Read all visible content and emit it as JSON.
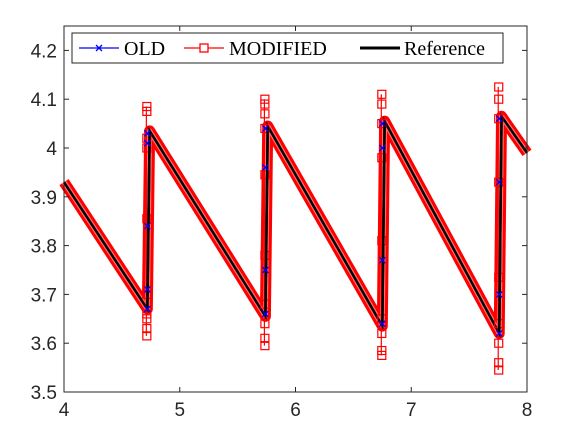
{
  "toolbar": {
    "buttons": [
      {
        "name": "brush-icon"
      },
      {
        "name": "data-tips-icon"
      },
      {
        "name": "export-icon"
      },
      {
        "name": "pan-hand-icon"
      },
      {
        "name": "zoom-in-icon"
      },
      {
        "name": "zoom-out-icon"
      },
      {
        "name": "home-icon"
      }
    ]
  },
  "chart_data": {
    "type": "line",
    "title": "",
    "xlabel": "",
    "ylabel": "",
    "xlim": [
      4,
      8
    ],
    "ylim": [
      3.5,
      4.25
    ],
    "xticks": [
      "4",
      "5",
      "6",
      "7",
      "8"
    ],
    "yticks": [
      "3.5",
      "3.6",
      "3.7",
      "3.8",
      "3.9",
      "4",
      "4.1",
      "4.2"
    ],
    "grid": false,
    "legend": {
      "placement": "top",
      "orientation": "horizontal"
    },
    "sawtooth": {
      "segments": [
        {
          "x_start": 4.0,
          "y_start": 3.93,
          "x_end": 4.72,
          "y_end": 3.67
        },
        {
          "x_start": 4.74,
          "y_start": 4.035,
          "x_end": 5.74,
          "y_end": 3.655
        },
        {
          "x_start": 5.76,
          "y_start": 4.045,
          "x_end": 6.75,
          "y_end": 3.635
        },
        {
          "x_start": 6.77,
          "y_start": 4.055,
          "x_end": 7.76,
          "y_end": 3.62
        },
        {
          "x_start": 7.78,
          "y_start": 4.065,
          "x_end": 8.0,
          "y_end": 3.99
        }
      ]
    },
    "series": [
      {
        "name": "OLD",
        "color": "#0000ff",
        "marker": "x",
        "jumps": [
          {
            "x": 4.72,
            "y": [
              3.67,
              3.71,
              3.84,
              4.01,
              4.03
            ]
          },
          {
            "x": 5.74,
            "y": [
              3.66,
              3.75,
              3.96,
              4.04
            ]
          },
          {
            "x": 6.75,
            "y": [
              3.64,
              3.77,
              4.0,
              4.05
            ]
          },
          {
            "x": 7.76,
            "y": [
              3.62,
              3.7,
              3.93,
              4.06
            ]
          }
        ]
      },
      {
        "name": "MODIFIED",
        "color": "#ff0000",
        "marker": "square",
        "jumps": [
          {
            "x": 4.72,
            "y": [
              3.615,
              3.63,
              3.65,
              3.66,
              3.7,
              3.855,
              4.0,
              4.02,
              4.075,
              4.085
            ]
          },
          {
            "x": 5.74,
            "y": [
              3.595,
              3.61,
              3.64,
              3.68,
              3.78,
              3.945,
              4.04,
              4.07,
              4.09,
              4.1
            ]
          },
          {
            "x": 6.75,
            "y": [
              3.575,
              3.585,
              3.62,
              3.65,
              3.81,
              3.98,
              4.05,
              4.09,
              4.11
            ]
          },
          {
            "x": 7.76,
            "y": [
              3.545,
              3.56,
              3.6,
              3.64,
              3.735,
              3.93,
              4.06,
              4.1,
              4.125
            ]
          }
        ]
      },
      {
        "name": "Reference",
        "color": "#000000",
        "marker": "none"
      }
    ]
  }
}
